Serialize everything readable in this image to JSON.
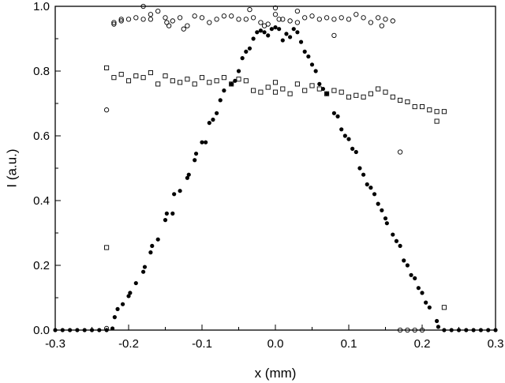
{
  "chart_data": {
    "type": "scatter",
    "title": "",
    "xlabel": "x (mm)",
    "ylabel": "I (a.u.)",
    "xlim": [
      -0.3,
      0.3
    ],
    "ylim": [
      0.0,
      1.0
    ],
    "xticks": [
      "-0.3",
      "-0.2",
      "-0.1",
      "0.0",
      "0.1",
      "0.2",
      "0.3"
    ],
    "yticks": [
      "0.0",
      "0.2",
      "0.4",
      "0.6",
      "0.8",
      "1.0"
    ],
    "grid": false,
    "legend": "none",
    "colors": {
      "axis": "#000000",
      "marker": "#000000",
      "background": "#ffffff"
    },
    "series": [
      {
        "marker": "filled-circle",
        "points": [
          [
            -0.3,
            0.0
          ],
          [
            -0.29,
            0.0
          ],
          [
            -0.28,
            0.0
          ],
          [
            -0.27,
            0.0
          ],
          [
            -0.26,
            0.0
          ],
          [
            -0.25,
            0.0
          ],
          [
            -0.24,
            0.0
          ],
          [
            -0.23,
            0.0
          ],
          [
            -0.222,
            0.005
          ],
          [
            -0.219,
            0.04
          ],
          [
            -0.215,
            0.065
          ],
          [
            -0.208,
            0.08
          ],
          [
            -0.2,
            0.105
          ],
          [
            -0.198,
            0.115
          ],
          [
            -0.19,
            0.145
          ],
          [
            -0.18,
            0.18
          ],
          [
            -0.178,
            0.195
          ],
          [
            -0.17,
            0.24
          ],
          [
            -0.168,
            0.26
          ],
          [
            -0.16,
            0.28
          ],
          [
            -0.15,
            0.34
          ],
          [
            -0.148,
            0.36
          ],
          [
            -0.14,
            0.36
          ],
          [
            -0.138,
            0.42
          ],
          [
            -0.13,
            0.43
          ],
          [
            -0.12,
            0.47
          ],
          [
            -0.118,
            0.48
          ],
          [
            -0.11,
            0.525
          ],
          [
            -0.108,
            0.545
          ],
          [
            -0.1,
            0.58
          ],
          [
            -0.095,
            0.58
          ],
          [
            -0.09,
            0.64
          ],
          [
            -0.085,
            0.65
          ],
          [
            -0.08,
            0.67
          ],
          [
            -0.075,
            0.71
          ],
          [
            -0.07,
            0.74
          ],
          [
            -0.06,
            0.76
          ],
          [
            -0.055,
            0.77
          ],
          [
            -0.05,
            0.8
          ],
          [
            -0.045,
            0.84
          ],
          [
            -0.04,
            0.86
          ],
          [
            -0.035,
            0.87
          ],
          [
            -0.03,
            0.9
          ],
          [
            -0.025,
            0.92
          ],
          [
            -0.02,
            0.925
          ],
          [
            -0.015,
            0.92
          ],
          [
            -0.01,
            0.91
          ],
          [
            -0.005,
            0.93
          ],
          [
            0.0,
            0.935
          ],
          [
            0.005,
            0.93
          ],
          [
            0.01,
            0.895
          ],
          [
            0.015,
            0.915
          ],
          [
            0.02,
            0.905
          ],
          [
            0.025,
            0.93
          ],
          [
            0.03,
            0.92
          ],
          [
            0.035,
            0.89
          ],
          [
            0.04,
            0.86
          ],
          [
            0.045,
            0.845
          ],
          [
            0.05,
            0.82
          ],
          [
            0.055,
            0.8
          ],
          [
            0.06,
            0.76
          ],
          [
            0.065,
            0.745
          ],
          [
            0.07,
            0.73
          ],
          [
            0.08,
            0.67
          ],
          [
            0.085,
            0.66
          ],
          [
            0.09,
            0.62
          ],
          [
            0.095,
            0.6
          ],
          [
            0.1,
            0.59
          ],
          [
            0.105,
            0.56
          ],
          [
            0.11,
            0.55
          ],
          [
            0.115,
            0.5
          ],
          [
            0.12,
            0.48
          ],
          [
            0.125,
            0.45
          ],
          [
            0.13,
            0.44
          ],
          [
            0.135,
            0.42
          ],
          [
            0.14,
            0.39
          ],
          [
            0.145,
            0.37
          ],
          [
            0.15,
            0.345
          ],
          [
            0.152,
            0.33
          ],
          [
            0.16,
            0.295
          ],
          [
            0.165,
            0.275
          ],
          [
            0.17,
            0.26
          ],
          [
            0.175,
            0.215
          ],
          [
            0.18,
            0.2
          ],
          [
            0.185,
            0.17
          ],
          [
            0.19,
            0.16
          ],
          [
            0.195,
            0.13
          ],
          [
            0.2,
            0.115
          ],
          [
            0.205,
            0.085
          ],
          [
            0.21,
            0.07
          ],
          [
            0.22,
            0.028
          ],
          [
            0.222,
            0.01
          ],
          [
            0.23,
            0.0
          ],
          [
            0.24,
            0.0
          ],
          [
            0.25,
            0.0
          ],
          [
            0.26,
            0.0
          ],
          [
            0.27,
            0.0
          ],
          [
            0.28,
            0.0
          ],
          [
            0.29,
            0.0
          ],
          [
            0.3,
            0.0
          ]
        ]
      },
      {
        "marker": "open-circle",
        "points": [
          [
            -0.23,
            0.68
          ],
          [
            -0.23,
            0.005
          ],
          [
            -0.22,
            0.95
          ],
          [
            -0.22,
            0.945
          ],
          [
            -0.21,
            0.96
          ],
          [
            -0.21,
            0.955
          ],
          [
            -0.2,
            0.96
          ],
          [
            -0.19,
            0.965
          ],
          [
            -0.18,
            1.0
          ],
          [
            -0.18,
            0.96
          ],
          [
            -0.17,
            0.975
          ],
          [
            -0.17,
            0.96
          ],
          [
            -0.16,
            0.985
          ],
          [
            -0.15,
            0.965
          ],
          [
            -0.148,
            0.95
          ],
          [
            -0.145,
            0.94
          ],
          [
            -0.14,
            0.955
          ],
          [
            -0.13,
            0.965
          ],
          [
            -0.125,
            0.93
          ],
          [
            -0.12,
            0.94
          ],
          [
            -0.11,
            0.97
          ],
          [
            -0.1,
            0.965
          ],
          [
            -0.09,
            0.95
          ],
          [
            -0.08,
            0.96
          ],
          [
            -0.07,
            0.97
          ],
          [
            -0.06,
            0.97
          ],
          [
            -0.05,
            0.96
          ],
          [
            -0.04,
            0.96
          ],
          [
            -0.035,
            0.99
          ],
          [
            -0.03,
            0.965
          ],
          [
            -0.02,
            0.95
          ],
          [
            -0.015,
            0.94
          ],
          [
            -0.01,
            0.945
          ],
          [
            0.0,
            0.975
          ],
          [
            0.0,
            0.995
          ],
          [
            0.005,
            0.96
          ],
          [
            0.01,
            0.96
          ],
          [
            0.02,
            0.955
          ],
          [
            0.03,
            0.95
          ],
          [
            0.03,
            0.985
          ],
          [
            0.04,
            0.965
          ],
          [
            0.05,
            0.97
          ],
          [
            0.06,
            0.96
          ],
          [
            0.07,
            0.965
          ],
          [
            0.08,
            0.96
          ],
          [
            0.08,
            0.91
          ],
          [
            0.09,
            0.965
          ],
          [
            0.1,
            0.96
          ],
          [
            0.11,
            0.975
          ],
          [
            0.12,
            0.965
          ],
          [
            0.13,
            0.95
          ],
          [
            0.14,
            0.965
          ],
          [
            0.145,
            0.94
          ],
          [
            0.15,
            0.96
          ],
          [
            0.16,
            0.955
          ],
          [
            0.17,
            0.55
          ],
          [
            0.17,
            0.0
          ],
          [
            0.18,
            0.0
          ],
          [
            0.19,
            0.0
          ],
          [
            0.2,
            0.0
          ]
        ]
      },
      {
        "marker": "open-square",
        "points": [
          [
            -0.23,
            0.81
          ],
          [
            -0.23,
            0.255
          ],
          [
            -0.22,
            0.78
          ],
          [
            -0.21,
            0.79
          ],
          [
            -0.2,
            0.77
          ],
          [
            -0.19,
            0.785
          ],
          [
            -0.18,
            0.78
          ],
          [
            -0.17,
            0.795
          ],
          [
            -0.16,
            0.76
          ],
          [
            -0.15,
            0.785
          ],
          [
            -0.14,
            0.77
          ],
          [
            -0.13,
            0.765
          ],
          [
            -0.12,
            0.775
          ],
          [
            -0.11,
            0.76
          ],
          [
            -0.1,
            0.78
          ],
          [
            -0.09,
            0.765
          ],
          [
            -0.08,
            0.77
          ],
          [
            -0.07,
            0.78
          ],
          [
            -0.06,
            0.76
          ],
          [
            -0.05,
            0.775
          ],
          [
            -0.04,
            0.77
          ],
          [
            -0.03,
            0.74
          ],
          [
            -0.02,
            0.735
          ],
          [
            -0.01,
            0.75
          ],
          [
            0.0,
            0.765
          ],
          [
            0.0,
            0.735
          ],
          [
            0.01,
            0.745
          ],
          [
            0.02,
            0.73
          ],
          [
            0.03,
            0.76
          ],
          [
            0.04,
            0.74
          ],
          [
            0.05,
            0.755
          ],
          [
            0.06,
            0.745
          ],
          [
            0.07,
            0.73
          ],
          [
            0.08,
            0.74
          ],
          [
            0.09,
            0.735
          ],
          [
            0.1,
            0.72
          ],
          [
            0.11,
            0.725
          ],
          [
            0.12,
            0.72
          ],
          [
            0.13,
            0.73
          ],
          [
            0.14,
            0.745
          ],
          [
            0.15,
            0.735
          ],
          [
            0.16,
            0.72
          ],
          [
            0.17,
            0.71
          ],
          [
            0.18,
            0.705
          ],
          [
            0.19,
            0.69
          ],
          [
            0.2,
            0.69
          ],
          [
            0.21,
            0.68
          ],
          [
            0.22,
            0.645
          ],
          [
            0.22,
            0.675
          ],
          [
            0.23,
            0.675
          ],
          [
            0.23,
            0.07
          ]
        ]
      }
    ]
  }
}
